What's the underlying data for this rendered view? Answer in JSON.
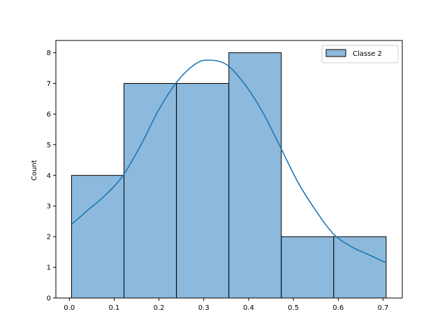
{
  "chart_data": {
    "type": "bar",
    "title": "",
    "xlabel": "",
    "ylabel": "Count",
    "xlim": [
      -0.03,
      0.743
    ],
    "ylim": [
      0,
      8.4
    ],
    "bin_edges": [
      0.005,
      0.122,
      0.239,
      0.356,
      0.473,
      0.59,
      0.707
    ],
    "series": [
      {
        "name": "Classe 2",
        "values": [
          4,
          7,
          7,
          8,
          2,
          2
        ]
      }
    ],
    "kde": {
      "x": [
        0.005,
        0.04,
        0.08,
        0.12,
        0.16,
        0.2,
        0.24,
        0.28,
        0.31,
        0.35,
        0.39,
        0.43,
        0.47,
        0.51,
        0.55,
        0.59,
        0.63,
        0.67,
        0.707
      ],
      "y": [
        2.4,
        2.85,
        3.35,
        4.0,
        5.0,
        6.15,
        7.05,
        7.62,
        7.76,
        7.62,
        7.0,
        6.1,
        4.95,
        3.78,
        2.85,
        2.08,
        1.67,
        1.4,
        1.15
      ]
    },
    "x_ticks": [
      0.0,
      0.1,
      0.2,
      0.3,
      0.4,
      0.5,
      0.6,
      0.7
    ],
    "x_tick_labels": [
      "0.0",
      "0.1",
      "0.2",
      "0.3",
      "0.4",
      "0.5",
      "0.6",
      "0.7"
    ],
    "y_ticks": [
      0,
      1,
      2,
      3,
      4,
      5,
      6,
      7,
      8
    ],
    "y_tick_labels": [
      "0",
      "1",
      "2",
      "3",
      "4",
      "5",
      "6",
      "7",
      "8"
    ],
    "legend": {
      "position": "top-right",
      "entries": [
        "Classe 2"
      ]
    },
    "colors": {
      "bar_fill": "#8cb9dc",
      "bar_edge": "#000000",
      "kde_line": "#1f77b4"
    },
    "grid": false
  }
}
